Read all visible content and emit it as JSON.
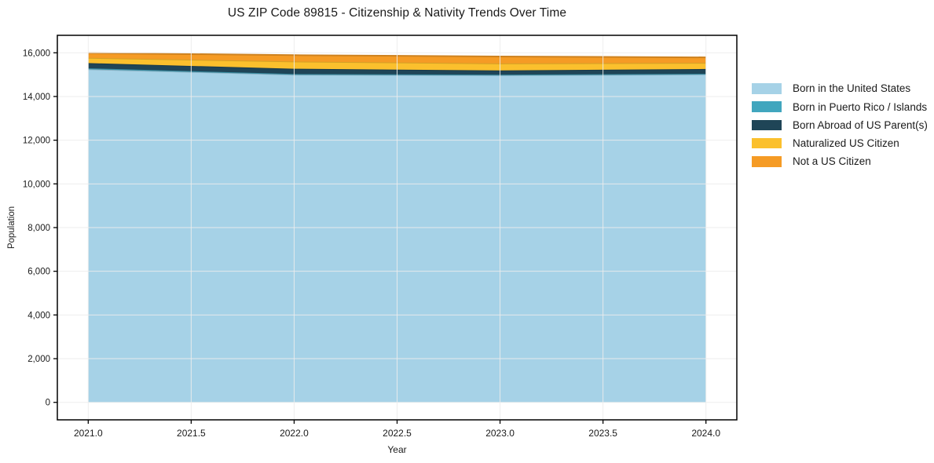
{
  "page": {
    "title": "US ZIP Code 89815 - Citizenship & Nativity Trends Over Time"
  },
  "chart_data": {
    "type": "area",
    "stacked": true,
    "title": "US ZIP Code 89815 - Citizenship & Nativity Trends Over Time",
    "xlabel": "Year",
    "ylabel": "Population",
    "x": [
      2021,
      2022,
      2023,
      2024
    ],
    "series": [
      {
        "name": "Born in the United States",
        "color": "#A6D2E7",
        "values": [
          15250,
          15000,
          14970,
          15010
        ]
      },
      {
        "name": "Born in Puerto Rico / Islands",
        "color": "#41A6BE",
        "values": [
          40,
          30,
          30,
          30
        ]
      },
      {
        "name": "Born Abroad of US Parent(s)",
        "color": "#1F4557",
        "values": [
          240,
          240,
          190,
          220
        ]
      },
      {
        "name": "Naturalized US Citizen",
        "color": "#FBC02D",
        "values": [
          240,
          330,
          320,
          280
        ]
      },
      {
        "name": "Not a US Citizen",
        "color": "#F59B25",
        "values": [
          220,
          290,
          320,
          250
        ]
      }
    ],
    "totals": [
      15990,
      15890,
      15830,
      15790
    ],
    "xlim": [
      2020.85,
      2024.15
    ],
    "ylim": [
      -800,
      16800
    ],
    "xticks": {
      "values": [
        2021.0,
        2021.5,
        2022.0,
        2022.5,
        2023.0,
        2023.5,
        2024.0
      ],
      "labels": [
        "2021.0",
        "2021.5",
        "2022.0",
        "2022.5",
        "2023.0",
        "2023.5",
        "2024.0"
      ]
    },
    "yticks": {
      "values": [
        0,
        2000,
        4000,
        6000,
        8000,
        10000,
        12000,
        14000,
        16000
      ],
      "labels": [
        "0",
        "2,000",
        "4,000",
        "6,000",
        "8,000",
        "10,000",
        "12,000",
        "14,000",
        "16,000"
      ]
    },
    "grid": true,
    "legend_position": "right-outside"
  }
}
